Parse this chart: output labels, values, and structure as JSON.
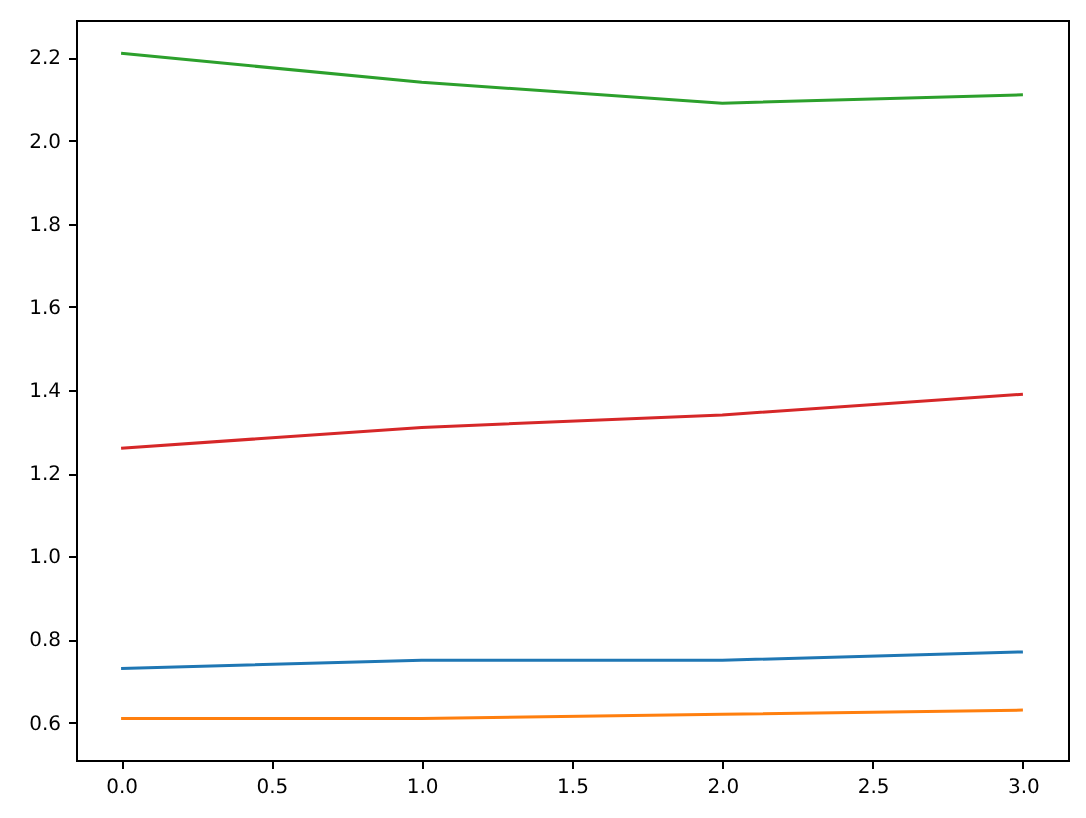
{
  "chart_data": {
    "type": "line",
    "x": [
      0,
      1,
      2,
      3
    ],
    "series": [
      {
        "color": "#1f77b4",
        "values": [
          0.73,
          0.75,
          0.75,
          0.77
        ]
      },
      {
        "color": "#ff7f0e",
        "values": [
          0.61,
          0.61,
          0.62,
          0.63
        ]
      },
      {
        "color": "#2ca02c",
        "values": [
          2.21,
          2.14,
          2.09,
          2.11
        ]
      },
      {
        "color": "#d62728",
        "values": [
          1.26,
          1.31,
          1.34,
          1.39
        ]
      }
    ],
    "xlim": [
      -0.15,
      3.15
    ],
    "ylim": [
      0.51,
      2.29
    ],
    "xticks": [
      {
        "value": 0,
        "label": "0.0"
      },
      {
        "value": 0.5,
        "label": "0.5"
      },
      {
        "value": 1,
        "label": "1.0"
      },
      {
        "value": 1.5,
        "label": "1.5"
      },
      {
        "value": 2,
        "label": "2.0"
      },
      {
        "value": 2.5,
        "label": "2.5"
      },
      {
        "value": 3,
        "label": "3.0"
      }
    ],
    "yticks": [
      {
        "value": 0.6,
        "label": "0.6"
      },
      {
        "value": 0.8,
        "label": "0.8"
      },
      {
        "value": 1,
        "label": "1.0"
      },
      {
        "value": 1.2,
        "label": "1.2"
      },
      {
        "value": 1.4,
        "label": "1.4"
      },
      {
        "value": 1.6,
        "label": "1.6"
      },
      {
        "value": 1.8,
        "label": "1.8"
      },
      {
        "value": 2,
        "label": "2.0"
      },
      {
        "value": 2.2,
        "label": "2.2"
      }
    ],
    "grid": false,
    "line_style": "solid"
  }
}
